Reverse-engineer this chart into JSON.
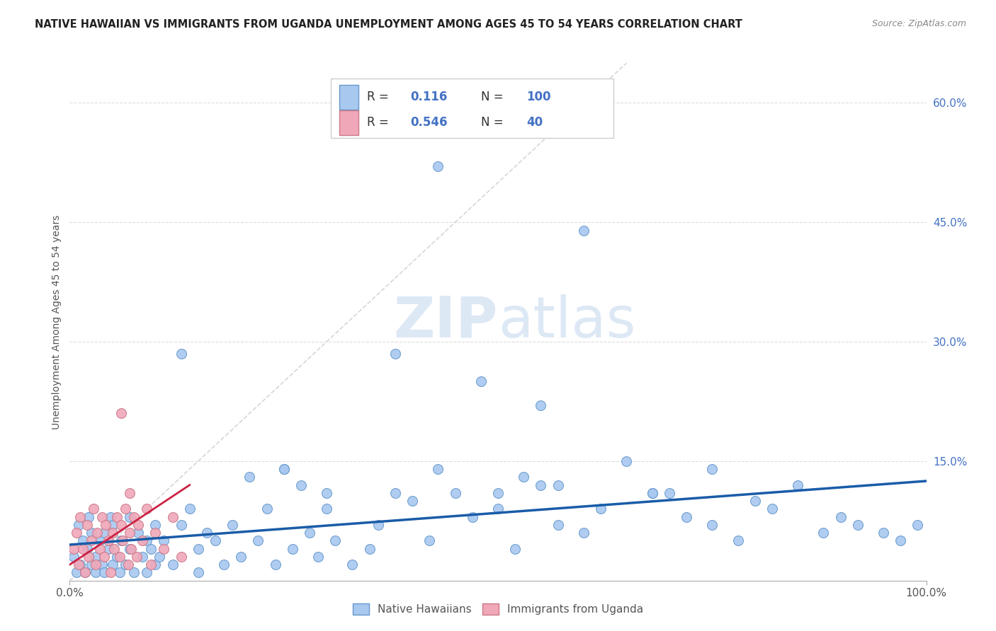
{
  "title": "NATIVE HAWAIIAN VS IMMIGRANTS FROM UGANDA UNEMPLOYMENT AMONG AGES 45 TO 54 YEARS CORRELATION CHART",
  "source": "Source: ZipAtlas.com",
  "ylabel": "Unemployment Among Ages 45 to 54 years",
  "xlim": [
    0,
    1.0
  ],
  "ylim": [
    0,
    0.65
  ],
  "xtick_positions": [
    0.0,
    1.0
  ],
  "xtick_labels": [
    "0.0%",
    "100.0%"
  ],
  "ytick_positions": [
    0.15,
    0.3,
    0.45,
    0.6
  ],
  "ytick_labels": [
    "15.0%",
    "30.0%",
    "45.0%",
    "60.0%"
  ],
  "blue_color": "#a8c8f0",
  "blue_edge": "#6699cc",
  "pink_color": "#f0a8b8",
  "pink_edge": "#cc7788",
  "blue_line_color": "#1a5ca8",
  "pink_line_color": "#cc2244",
  "diag_line_color": "#cccccc",
  "legend_text_color": "#4472c4",
  "watermark_color": "#dde8f5",
  "background_color": "#ffffff",
  "grid_color": "#dddddd",
  "blue_x": [
    0.005,
    0.008,
    0.01,
    0.012,
    0.015,
    0.018,
    0.02,
    0.022,
    0.025,
    0.025,
    0.03,
    0.03,
    0.035,
    0.038,
    0.04,
    0.04,
    0.045,
    0.048,
    0.05,
    0.05,
    0.055,
    0.058,
    0.06,
    0.065,
    0.07,
    0.07,
    0.075,
    0.08,
    0.085,
    0.09,
    0.09,
    0.095,
    0.1,
    0.1,
    0.105,
    0.11,
    0.12,
    0.13,
    0.13,
    0.14,
    0.15,
    0.15,
    0.16,
    0.17,
    0.18,
    0.19,
    0.2,
    0.21,
    0.22,
    0.23,
    0.24,
    0.25,
    0.26,
    0.27,
    0.28,
    0.29,
    0.3,
    0.31,
    0.33,
    0.35,
    0.36,
    0.38,
    0.4,
    0.42,
    0.43,
    0.45,
    0.47,
    0.48,
    0.5,
    0.52,
    0.53,
    0.55,
    0.57,
    0.6,
    0.62,
    0.65,
    0.68,
    0.7,
    0.72,
    0.75,
    0.78,
    0.8,
    0.82,
    0.85,
    0.88,
    0.9,
    0.92,
    0.95,
    0.97,
    0.99,
    0.43,
    0.55,
    0.6,
    0.68,
    0.25,
    0.3,
    0.38,
    0.5,
    0.57,
    0.75
  ],
  "blue_y": [
    0.03,
    0.01,
    0.07,
    0.02,
    0.05,
    0.01,
    0.04,
    0.08,
    0.02,
    0.06,
    0.03,
    0.01,
    0.05,
    0.02,
    0.06,
    0.01,
    0.04,
    0.08,
    0.02,
    0.07,
    0.03,
    0.01,
    0.05,
    0.02,
    0.04,
    0.08,
    0.01,
    0.06,
    0.03,
    0.05,
    0.01,
    0.04,
    0.02,
    0.07,
    0.03,
    0.05,
    0.02,
    0.285,
    0.07,
    0.09,
    0.04,
    0.01,
    0.06,
    0.05,
    0.02,
    0.07,
    0.03,
    0.13,
    0.05,
    0.09,
    0.02,
    0.14,
    0.04,
    0.12,
    0.06,
    0.03,
    0.11,
    0.05,
    0.02,
    0.04,
    0.07,
    0.285,
    0.1,
    0.05,
    0.14,
    0.11,
    0.08,
    0.25,
    0.09,
    0.04,
    0.13,
    0.12,
    0.07,
    0.06,
    0.09,
    0.15,
    0.11,
    0.11,
    0.08,
    0.07,
    0.05,
    0.1,
    0.09,
    0.12,
    0.06,
    0.08,
    0.07,
    0.06,
    0.05,
    0.07,
    0.52,
    0.22,
    0.44,
    0.11,
    0.14,
    0.09,
    0.11,
    0.11,
    0.12,
    0.14
  ],
  "pink_x": [
    0.005,
    0.008,
    0.01,
    0.012,
    0.015,
    0.018,
    0.02,
    0.022,
    0.025,
    0.028,
    0.03,
    0.032,
    0.035,
    0.038,
    0.04,
    0.042,
    0.045,
    0.048,
    0.05,
    0.052,
    0.055,
    0.058,
    0.06,
    0.062,
    0.065,
    0.068,
    0.07,
    0.072,
    0.075,
    0.078,
    0.08,
    0.085,
    0.09,
    0.095,
    0.1,
    0.11,
    0.12,
    0.13,
    0.06,
    0.07
  ],
  "pink_y": [
    0.04,
    0.06,
    0.02,
    0.08,
    0.04,
    0.01,
    0.07,
    0.03,
    0.05,
    0.09,
    0.02,
    0.06,
    0.04,
    0.08,
    0.03,
    0.07,
    0.05,
    0.01,
    0.06,
    0.04,
    0.08,
    0.03,
    0.07,
    0.05,
    0.09,
    0.02,
    0.06,
    0.04,
    0.08,
    0.03,
    0.07,
    0.05,
    0.09,
    0.02,
    0.06,
    0.04,
    0.08,
    0.03,
    0.21,
    0.11
  ]
}
